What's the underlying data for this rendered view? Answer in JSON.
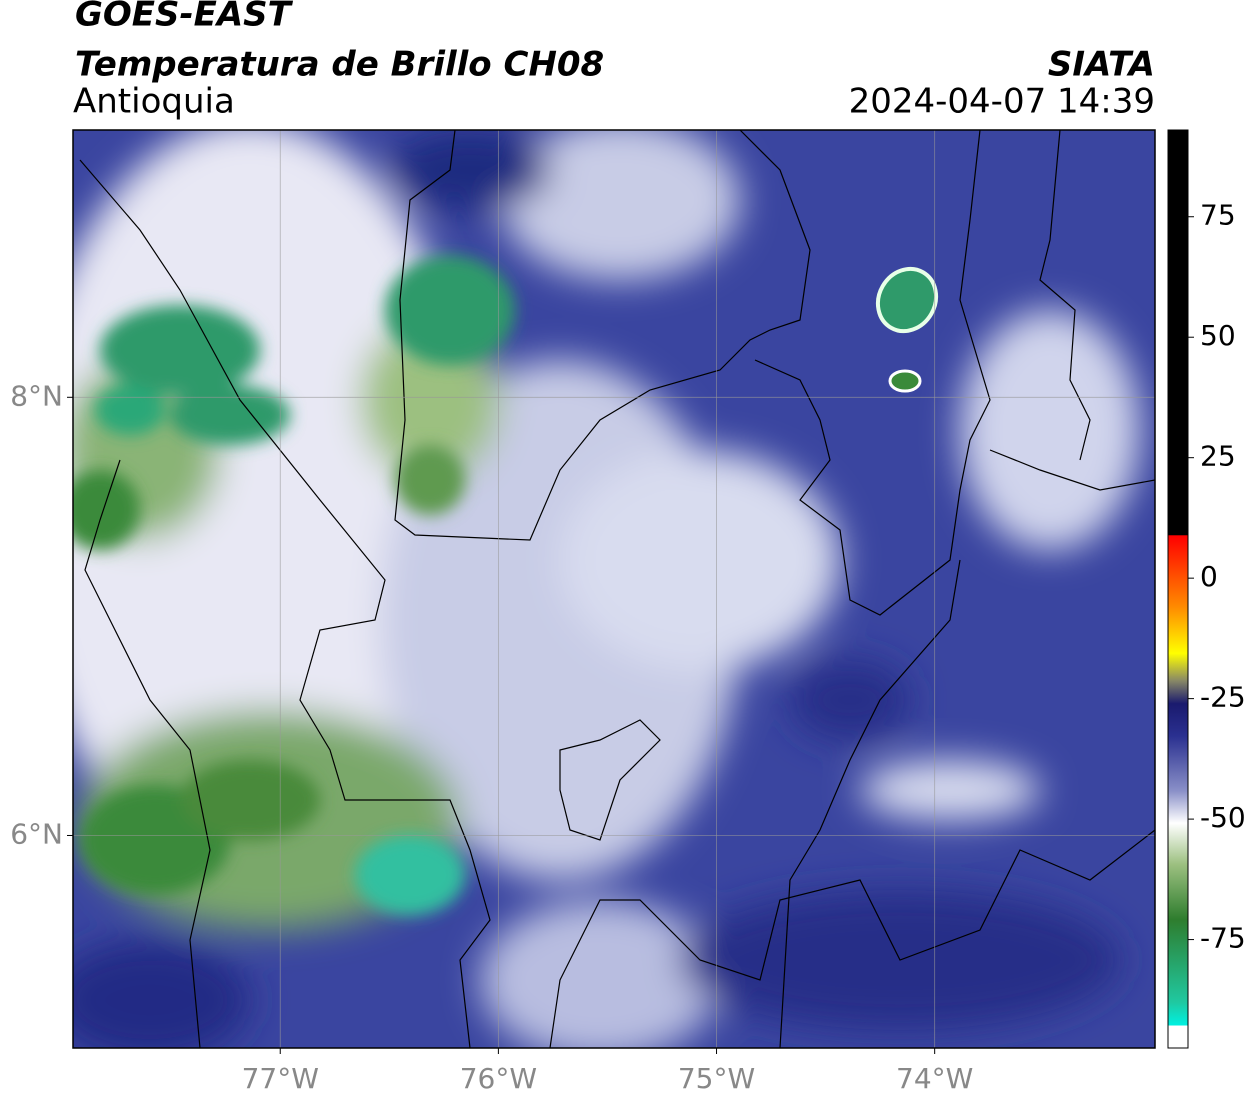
{
  "map": {
    "title": "GOES-EAST",
    "subtitle": "Temperatura de Brillo CH08",
    "region": "Antioquia",
    "source": "SIATA",
    "timestamp": "2024-04-07 14:39",
    "xlim": [
      -77.95,
      -72.99
    ],
    "ylim": [
      5.03,
      9.22
    ],
    "xticks": [
      {
        "value": -77,
        "label": "77°W"
      },
      {
        "value": -76,
        "label": "76°W"
      },
      {
        "value": -75,
        "label": "75°W"
      },
      {
        "value": -74,
        "label": "74°W"
      }
    ],
    "yticks": [
      {
        "value": 6,
        "label": "6°N"
      },
      {
        "value": 8,
        "label": "8°N"
      }
    ],
    "grid": true,
    "colorbar": {
      "lim": [
        -97.5,
        93
      ],
      "ticks": [
        75,
        50,
        25,
        0,
        -25,
        -50,
        -75
      ]
    }
  }
}
